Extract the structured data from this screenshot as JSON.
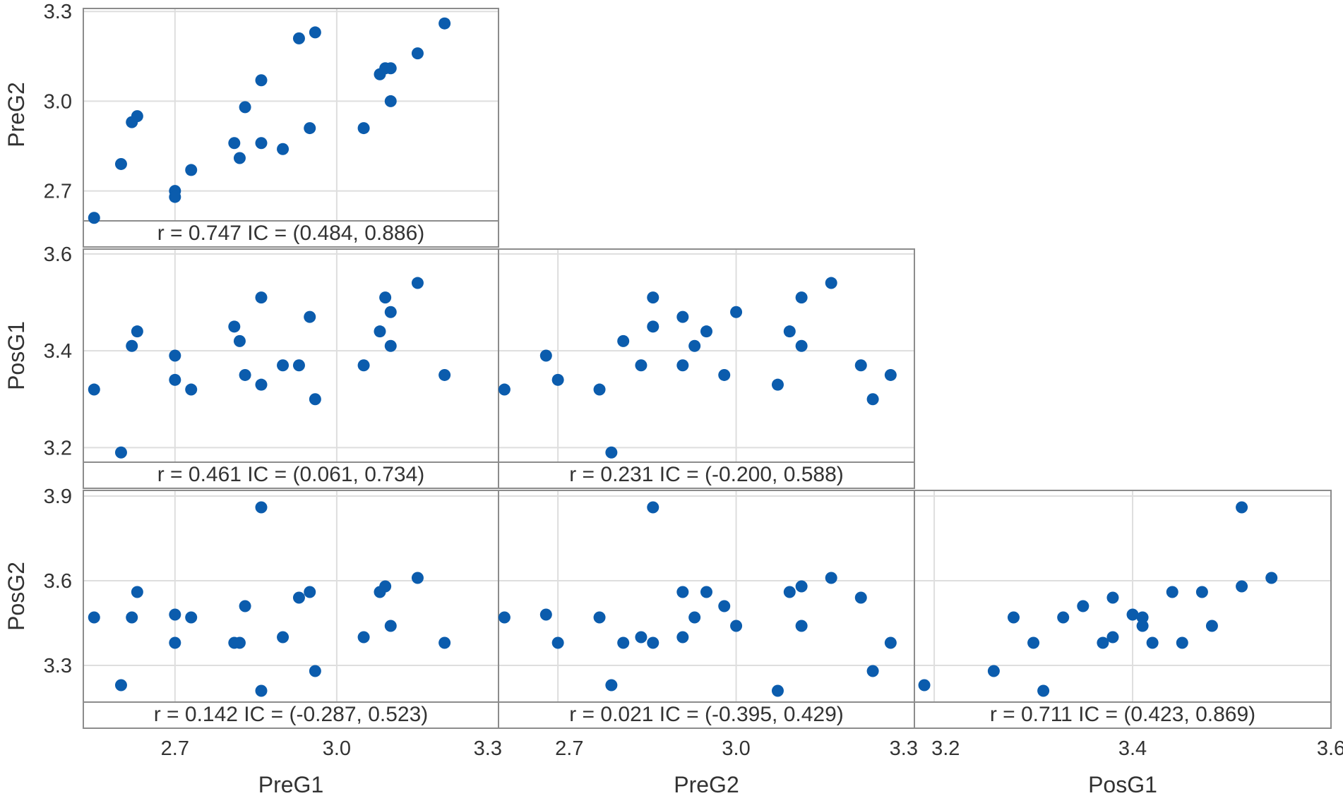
{
  "chart_data": {
    "type": "scatter",
    "variables": [
      "PreG1",
      "PreG2",
      "PosG1",
      "PosG2"
    ],
    "axes": {
      "PreG1": {
        "range": [
          2.53,
          3.3
        ],
        "ticks": [
          "2.7",
          "3.0",
          "3.3"
        ]
      },
      "PreG2": {
        "range": [
          2.6,
          3.3
        ],
        "ticks": [
          "2.7",
          "3.0",
          "3.3"
        ]
      },
      "PosG1": {
        "range": [
          3.18,
          3.6
        ],
        "ticks": [
          "3.2",
          "3.4",
          "3.6"
        ]
      },
      "PosG2": {
        "range": [
          3.17,
          3.92
        ],
        "ticks": [
          "3.3",
          "3.6",
          "3.9"
        ]
      }
    },
    "y_axes": {
      "PreG2": {
        "range": [
          2.6,
          3.31
        ],
        "ticks": [
          "2.7",
          "3.0",
          "3.3"
        ]
      },
      "PosG1": {
        "range": [
          3.17,
          3.61
        ],
        "ticks": [
          "3.2",
          "3.4",
          "3.6"
        ]
      },
      "PosG2": {
        "range": [
          3.17,
          3.92
        ],
        "ticks": [
          "3.3",
          "3.6",
          "3.9"
        ]
      }
    },
    "panels": [
      {
        "id": "preg2-vs-preg1",
        "x": "PreG1",
        "y": "PreG2",
        "correlation": "r = 0.747  IC = (0.484, 0.886)",
        "points": [
          [
            2.55,
            2.61
          ],
          [
            2.6,
            2.79
          ],
          [
            2.62,
            2.93
          ],
          [
            2.63,
            2.95
          ],
          [
            2.7,
            2.7
          ],
          [
            2.7,
            2.68
          ],
          [
            2.73,
            2.77
          ],
          [
            2.81,
            2.86
          ],
          [
            2.82,
            2.81
          ],
          [
            2.83,
            2.98
          ],
          [
            2.86,
            2.86
          ],
          [
            2.86,
            3.07
          ],
          [
            2.9,
            2.84
          ],
          [
            2.93,
            3.21
          ],
          [
            2.95,
            2.91
          ],
          [
            2.96,
            3.23
          ],
          [
            3.05,
            2.91
          ],
          [
            3.08,
            3.09
          ],
          [
            3.09,
            3.11
          ],
          [
            3.1,
            3.11
          ],
          [
            3.1,
            3.0
          ],
          [
            3.15,
            3.16
          ],
          [
            3.2,
            3.26
          ]
        ]
      },
      {
        "id": "posg1-vs-preg1",
        "x": "PreG1",
        "y": "PosG1",
        "correlation": "r = 0.461  IC = (0.061, 0.734)",
        "points": [
          [
            2.55,
            3.32
          ],
          [
            2.6,
            3.19
          ],
          [
            2.62,
            3.41
          ],
          [
            2.63,
            3.44
          ],
          [
            2.7,
            3.39
          ],
          [
            2.7,
            3.34
          ],
          [
            2.73,
            3.32
          ],
          [
            2.81,
            3.45
          ],
          [
            2.82,
            3.42
          ],
          [
            2.83,
            3.35
          ],
          [
            2.86,
            3.51
          ],
          [
            2.86,
            3.33
          ],
          [
            2.9,
            3.37
          ],
          [
            2.93,
            3.37
          ],
          [
            2.95,
            3.47
          ],
          [
            2.96,
            3.3
          ],
          [
            3.05,
            3.37
          ],
          [
            3.08,
            3.44
          ],
          [
            3.09,
            3.51
          ],
          [
            3.1,
            3.48
          ],
          [
            3.1,
            3.41
          ],
          [
            3.15,
            3.54
          ],
          [
            3.2,
            3.35
          ]
        ]
      },
      {
        "id": "posg1-vs-preg2",
        "x": "PreG2",
        "y": "PosG1",
        "correlation": "r = 0.231  IC = (-0.200, 0.588)",
        "points": [
          [
            2.61,
            3.32
          ],
          [
            2.68,
            3.39
          ],
          [
            2.7,
            3.34
          ],
          [
            2.77,
            3.32
          ],
          [
            2.79,
            3.19
          ],
          [
            2.81,
            3.42
          ],
          [
            2.84,
            3.37
          ],
          [
            2.86,
            3.45
          ],
          [
            2.86,
            3.51
          ],
          [
            2.91,
            3.47
          ],
          [
            2.91,
            3.37
          ],
          [
            2.93,
            3.41
          ],
          [
            2.95,
            3.44
          ],
          [
            2.98,
            3.35
          ],
          [
            3.0,
            3.48
          ],
          [
            3.07,
            3.33
          ],
          [
            3.09,
            3.44
          ],
          [
            3.11,
            3.51
          ],
          [
            3.11,
            3.41
          ],
          [
            3.16,
            3.54
          ],
          [
            3.21,
            3.37
          ],
          [
            3.23,
            3.3
          ],
          [
            3.26,
            3.35
          ]
        ]
      },
      {
        "id": "posg2-vs-preg1",
        "x": "PreG1",
        "y": "PosG2",
        "correlation": "r = 0.142  IC = (-0.287, 0.523)",
        "points": [
          [
            2.55,
            3.47
          ],
          [
            2.6,
            3.23
          ],
          [
            2.62,
            3.47
          ],
          [
            2.63,
            3.56
          ],
          [
            2.7,
            3.48
          ],
          [
            2.7,
            3.38
          ],
          [
            2.73,
            3.47
          ],
          [
            2.81,
            3.38
          ],
          [
            2.82,
            3.38
          ],
          [
            2.83,
            3.51
          ],
          [
            2.86,
            3.86
          ],
          [
            2.86,
            3.21
          ],
          [
            2.9,
            3.4
          ],
          [
            2.93,
            3.54
          ],
          [
            2.95,
            3.56
          ],
          [
            2.96,
            3.28
          ],
          [
            3.05,
            3.4
          ],
          [
            3.08,
            3.56
          ],
          [
            3.09,
            3.58
          ],
          [
            3.1,
            3.44
          ],
          [
            3.15,
            3.61
          ],
          [
            3.2,
            3.38
          ]
        ]
      },
      {
        "id": "posg2-vs-preg2",
        "x": "PreG2",
        "y": "PosG2",
        "correlation": "r = 0.021  IC = (-0.395, 0.429)",
        "points": [
          [
            2.61,
            3.47
          ],
          [
            2.68,
            3.48
          ],
          [
            2.7,
            3.38
          ],
          [
            2.77,
            3.47
          ],
          [
            2.79,
            3.23
          ],
          [
            2.81,
            3.38
          ],
          [
            2.84,
            3.4
          ],
          [
            2.86,
            3.38
          ],
          [
            2.86,
            3.86
          ],
          [
            2.91,
            3.56
          ],
          [
            2.91,
            3.4
          ],
          [
            2.93,
            3.47
          ],
          [
            2.95,
            3.56
          ],
          [
            2.98,
            3.51
          ],
          [
            3.0,
            3.44
          ],
          [
            3.07,
            3.21
          ],
          [
            3.09,
            3.56
          ],
          [
            3.11,
            3.58
          ],
          [
            3.11,
            3.44
          ],
          [
            3.16,
            3.61
          ],
          [
            3.21,
            3.54
          ],
          [
            3.23,
            3.28
          ],
          [
            3.26,
            3.38
          ]
        ]
      },
      {
        "id": "posg2-vs-posg1",
        "x": "PosG1",
        "y": "PosG2",
        "correlation": "r = 0.711  IC = (0.423, 0.869)",
        "points": [
          [
            3.19,
            3.23
          ],
          [
            3.26,
            3.28
          ],
          [
            3.28,
            3.47
          ],
          [
            3.3,
            3.38
          ],
          [
            3.31,
            3.21
          ],
          [
            3.33,
            3.47
          ],
          [
            3.35,
            3.51
          ],
          [
            3.37,
            3.38
          ],
          [
            3.38,
            3.54
          ],
          [
            3.38,
            3.4
          ],
          [
            3.4,
            3.48
          ],
          [
            3.41,
            3.47
          ],
          [
            3.41,
            3.44
          ],
          [
            3.42,
            3.38
          ],
          [
            3.44,
            3.56
          ],
          [
            3.45,
            3.38
          ],
          [
            3.47,
            3.56
          ],
          [
            3.48,
            3.44
          ],
          [
            3.51,
            3.86
          ],
          [
            3.51,
            3.58
          ],
          [
            3.54,
            3.61
          ]
        ]
      }
    ]
  }
}
